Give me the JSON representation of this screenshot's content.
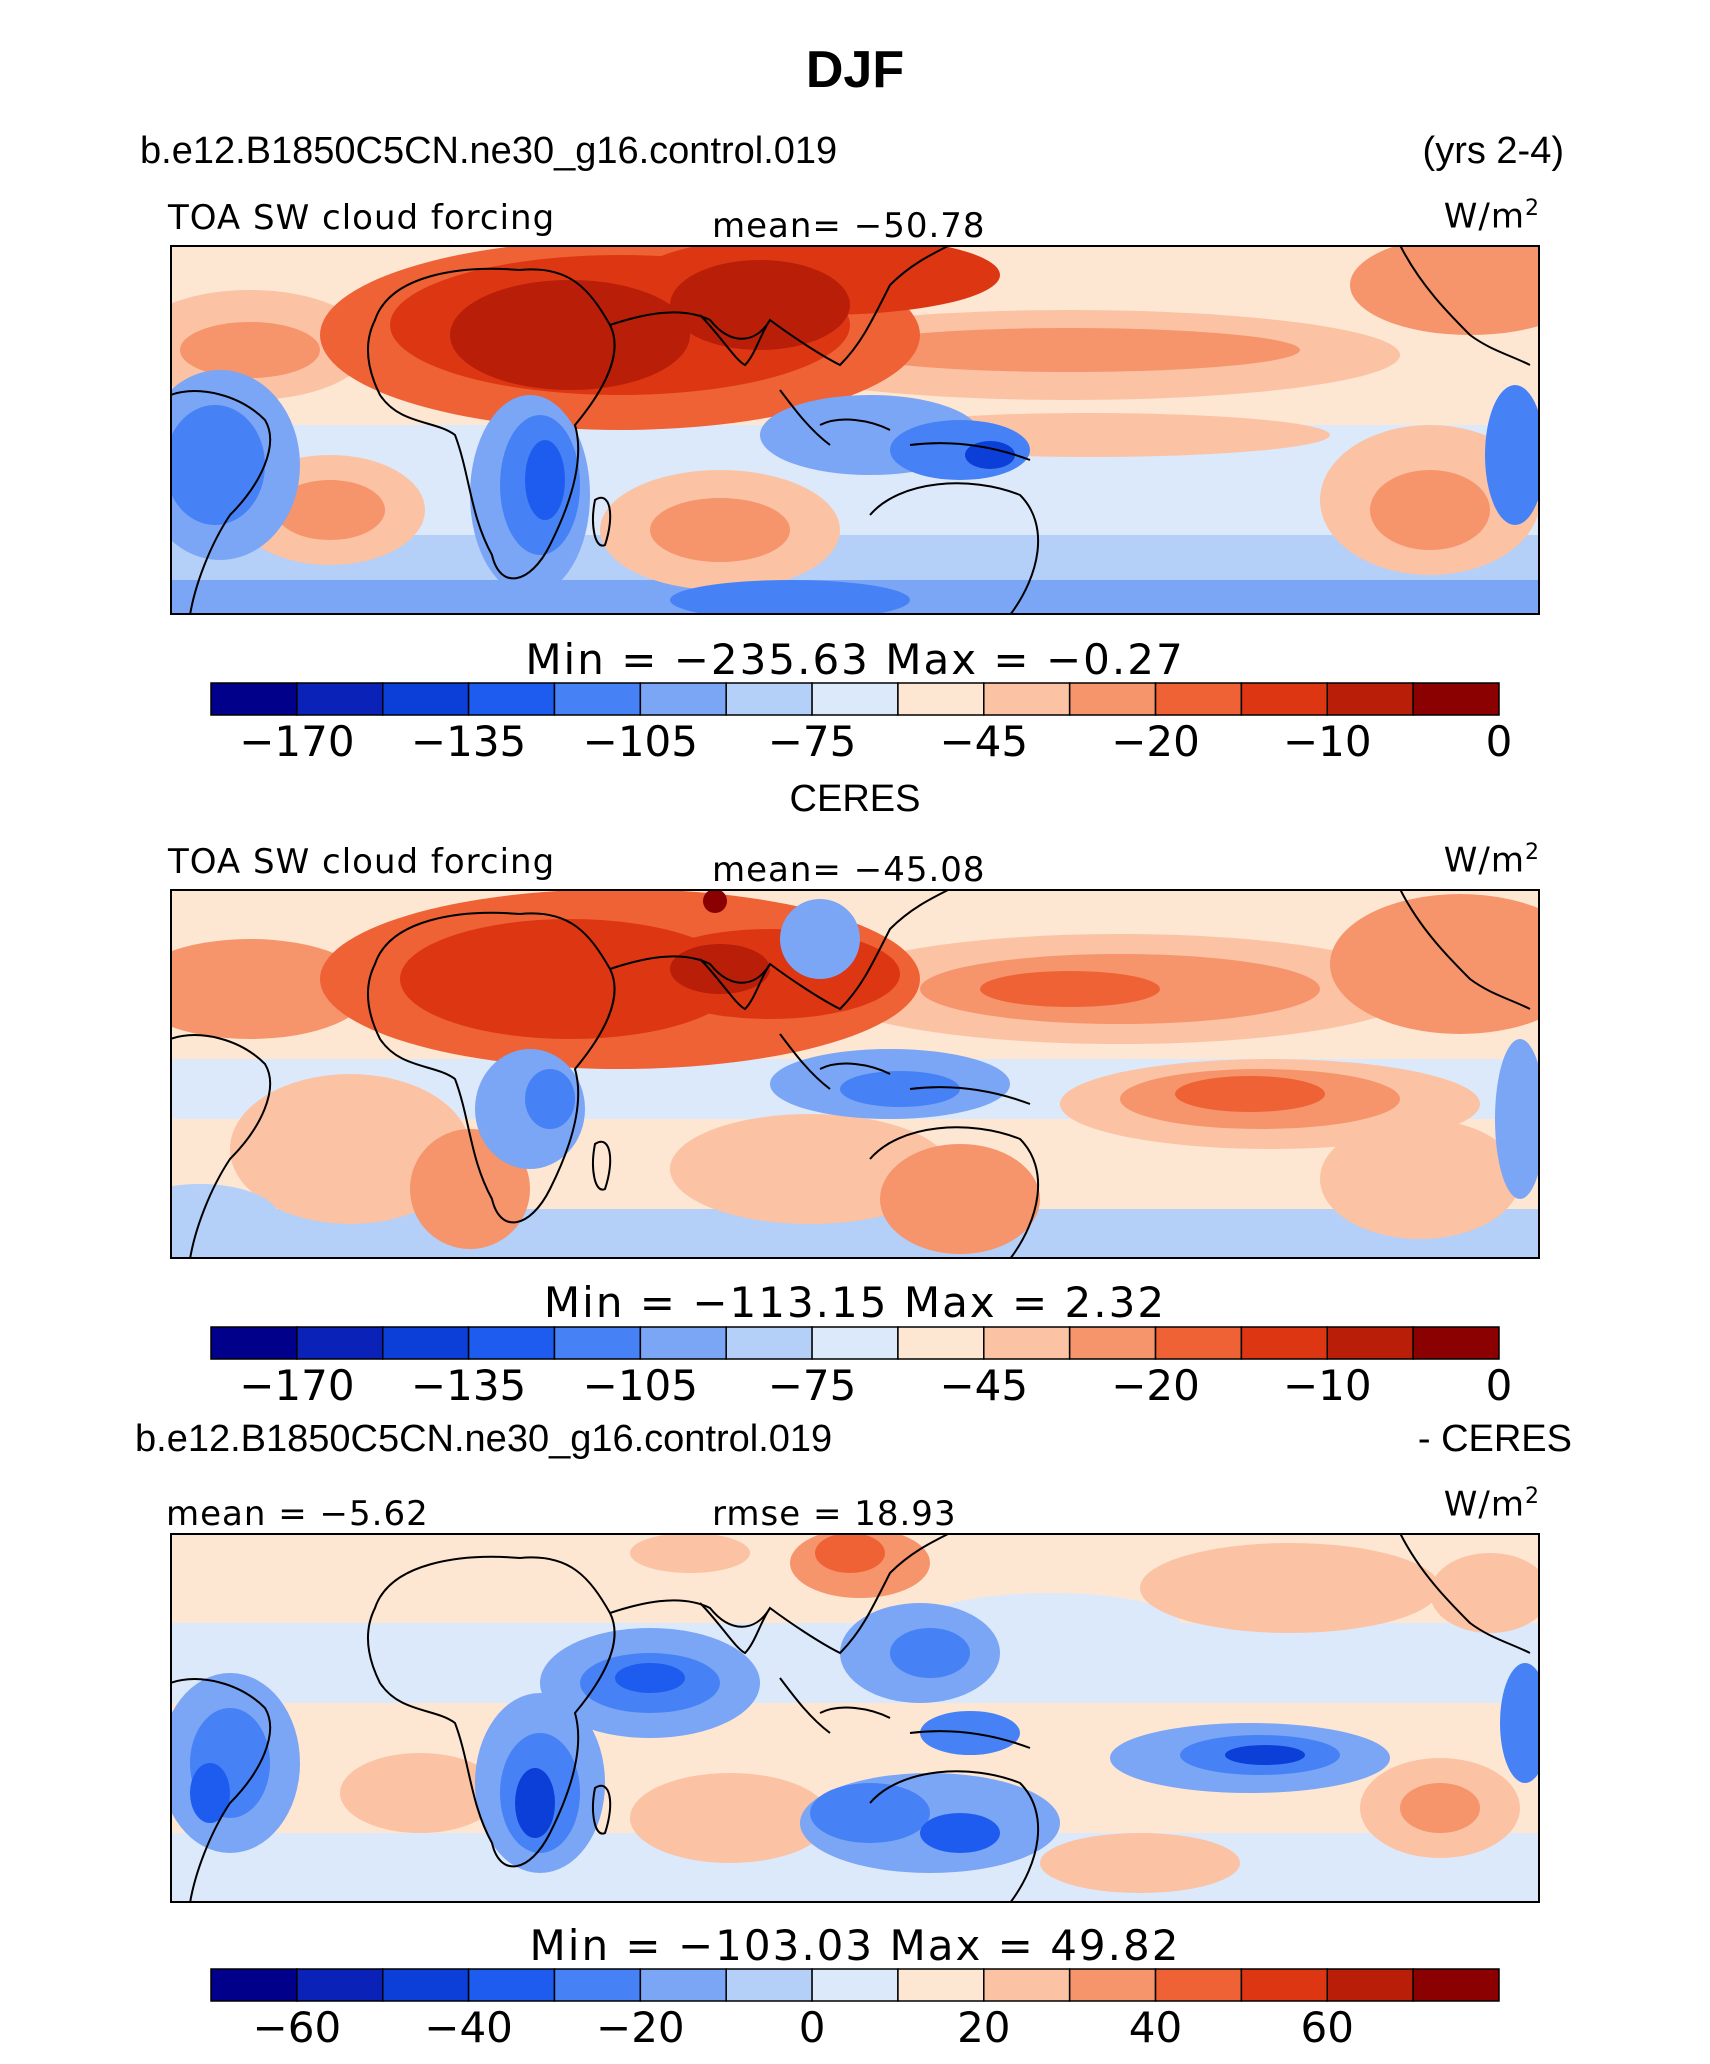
{
  "page": {
    "title": "DJF"
  },
  "panels": [
    {
      "name": "model",
      "header_left": "b.e12.B1850C5CN.ne30_g16.control.019",
      "header_right": "(yrs 2-4)",
      "left_label": "TOA SW cloud forcing",
      "center_label": "mean= −50.78",
      "units": "W/m²",
      "minmax": "Min  =  −235.63  Max  =    −0.27",
      "colorbar_ticks": [
        "−170",
        "−135",
        "−105",
        "−75",
        "−45",
        "−20",
        "−10",
        "0"
      ],
      "colors": [
        "#00008b",
        "#0a22b8",
        "#0c3fd8",
        "#1e5cf0",
        "#4682f5",
        "#7ba5f5",
        "#b4cff8",
        "#dce9fb",
        "#fde6d2",
        "#fbc2a4",
        "#f6946b",
        "#ee6235",
        "#dc3712",
        "#b81e08",
        "#8b0000"
      ]
    },
    {
      "name": "obs",
      "header_left": "CERES",
      "header_right": "",
      "left_label": "TOA SW cloud forcing",
      "center_label": "mean= −45.08",
      "units": "W/m²",
      "minmax": "Min  =  −113.15  Max  =     2.32",
      "colorbar_ticks": [
        "−170",
        "−135",
        "−105",
        "−75",
        "−45",
        "−20",
        "−10",
        "0"
      ],
      "colors": [
        "#00008b",
        "#0a22b8",
        "#0c3fd8",
        "#1e5cf0",
        "#4682f5",
        "#7ba5f5",
        "#b4cff8",
        "#dce9fb",
        "#fde6d2",
        "#fbc2a4",
        "#f6946b",
        "#ee6235",
        "#dc3712",
        "#b81e08",
        "#8b0000"
      ]
    },
    {
      "name": "diff",
      "header_left": "b.e12.B1850C5CN.ne30_g16.control.019",
      "header_right": "- CERES",
      "left_label": "mean =   −5.62",
      "center_label": "rmse =   18.93",
      "units": "W/m²",
      "minmax": "Min  =  −103.03  Max  =   49.82",
      "colorbar_ticks": [
        "−60",
        "−40",
        "−20",
        "0",
        "20",
        "40",
        "60"
      ],
      "colors": [
        "#00008b",
        "#0a22b8",
        "#0c3fd8",
        "#1e5cf0",
        "#4682f5",
        "#7ba5f5",
        "#b4cff8",
        "#dce9fb",
        "#fde6d2",
        "#fbc2a4",
        "#f6946b",
        "#ee6235",
        "#dc3712",
        "#b81e08",
        "#8b0000"
      ]
    }
  ],
  "chart_data": [
    {
      "type": "heatmap",
      "title": "DJF",
      "subtitle": "b.e12.B1850C5CN.ne30_g16.control.019 (yrs 2-4)",
      "variable": "TOA SW cloud forcing",
      "units": "W/m²",
      "mean": -50.78,
      "min": -235.63,
      "max": -0.27,
      "levels": [
        -170,
        -150,
        -135,
        -120,
        -105,
        -90,
        -75,
        -60,
        -45,
        -30,
        -20,
        -15,
        -10,
        -5,
        0
      ],
      "colorbar_tick_labels": [
        -170,
        -135,
        -105,
        -75,
        -45,
        -20,
        -10,
        0
      ]
    },
    {
      "type": "heatmap",
      "title": "CERES",
      "variable": "TOA SW cloud forcing",
      "units": "W/m²",
      "mean": -45.08,
      "min": -113.15,
      "max": 2.32,
      "levels": [
        -170,
        -150,
        -135,
        -120,
        -105,
        -90,
        -75,
        -60,
        -45,
        -30,
        -20,
        -15,
        -10,
        -5,
        0
      ],
      "colorbar_tick_labels": [
        -170,
        -135,
        -105,
        -75,
        -45,
        -20,
        -10,
        0
      ]
    },
    {
      "type": "heatmap",
      "title": "b.e12.B1850C5CN.ne30_g16.control.019 - CERES",
      "units": "W/m²",
      "mean": -5.62,
      "rmse": 18.93,
      "min": -103.03,
      "max": 49.82,
      "levels": [
        -70,
        -60,
        -50,
        -40,
        -30,
        -20,
        -10,
        0,
        10,
        20,
        30,
        40,
        50,
        60,
        70
      ],
      "colorbar_tick_labels": [
        -60,
        -40,
        -20,
        0,
        20,
        40,
        60
      ]
    }
  ]
}
